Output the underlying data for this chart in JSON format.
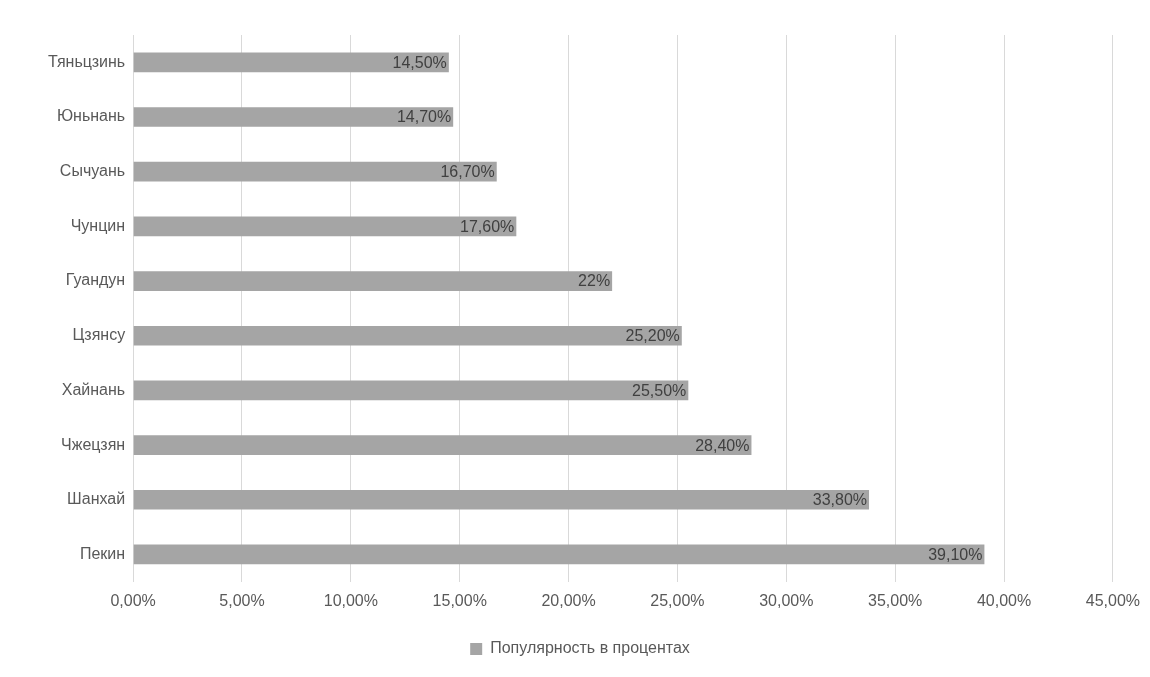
{
  "chart_data": {
    "type": "bar",
    "orientation": "horizontal",
    "categories": [
      "Тяньцзинь",
      "Юньнань",
      "Сычуань",
      "Чунцин",
      "Гуандун",
      "Цзянсу",
      "Хайнань",
      "Чжецзян",
      "Шанхай",
      "Пекин"
    ],
    "series": [
      {
        "name": "Популярность в процентах",
        "color": "#a5a5a5",
        "values": [
          14.5,
          14.7,
          16.7,
          17.6,
          22,
          25.2,
          25.5,
          28.4,
          33.8,
          39.1
        ],
        "value_labels": [
          "14,50%",
          "14,70%",
          "16,70%",
          "17,60%",
          "22%",
          "25,20%",
          "25,50%",
          "28,40%",
          "33,80%",
          "39,10%"
        ]
      }
    ],
    "xlim": [
      0,
      45
    ],
    "xticks": [
      {
        "value": 0,
        "label": "0,00%"
      },
      {
        "value": 5,
        "label": "5,00%"
      },
      {
        "value": 10,
        "label": "10,00%"
      },
      {
        "value": 15,
        "label": "15,00%"
      },
      {
        "value": 20,
        "label": "20,00%"
      },
      {
        "value": 25,
        "label": "25,00%"
      },
      {
        "value": 30,
        "label": "30,00%"
      },
      {
        "value": 35,
        "label": "35,00%"
      },
      {
        "value": 40,
        "label": "40,00%"
      },
      {
        "value": 45,
        "label": "45,00%"
      }
    ],
    "grid": "x",
    "legend": "bottom"
  }
}
